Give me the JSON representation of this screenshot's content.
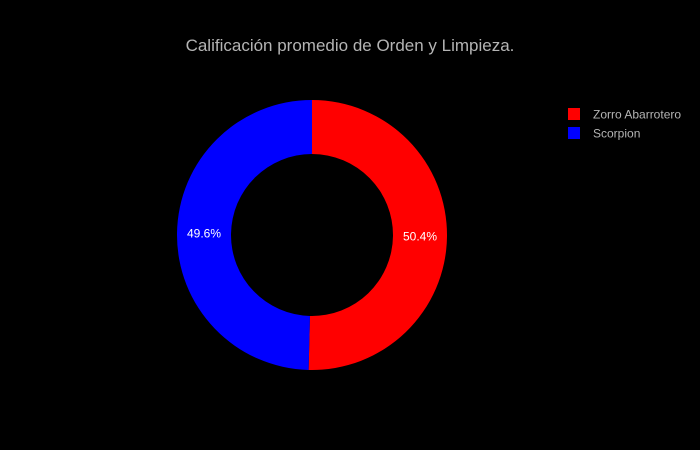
{
  "chart_data": {
    "type": "pie",
    "hole": true,
    "title": "Calificación promedio de Orden y Limpieza.",
    "labels": [
      "Zorro Abarrotero",
      "Scorpion"
    ],
    "values": [
      50.4,
      49.6
    ],
    "percent_labels": [
      "50.4%",
      "49.6%"
    ],
    "colors": [
      "#ff0000",
      "#0000ff"
    ],
    "legend_position": "top-right"
  }
}
